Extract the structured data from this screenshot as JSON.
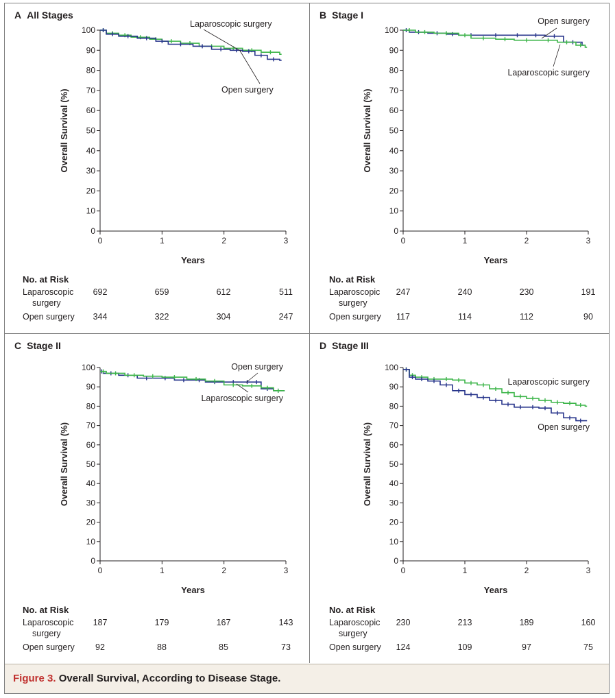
{
  "figure": {
    "label": "Figure 3.",
    "caption": "Overall Survival, According to Disease Stage."
  },
  "colors": {
    "laparoscopic": "#3db54a",
    "open": "#27348b",
    "axis": "#231f20",
    "caption_label": "#c0312f",
    "caption_bg": "#f4efe7"
  },
  "risk": {
    "title": "No. at Risk",
    "row1_label_line1": "Laparoscopic",
    "row1_label_line2": "surgery",
    "row2_label": "Open surgery"
  },
  "chart_data": [
    {
      "type": "line",
      "panel_letter": "A",
      "title": "All Stages",
      "xlabel": "Years",
      "ylabel": "Overall Survival (%)",
      "xlim": [
        0,
        3
      ],
      "ylim": [
        0,
        100
      ],
      "x_ticks": [
        0,
        1,
        2,
        3
      ],
      "y_ticks": [
        0,
        10,
        20,
        30,
        40,
        50,
        60,
        70,
        80,
        90,
        100
      ],
      "grid": false,
      "series": [
        {
          "name": "Laparoscopic surgery",
          "color": "#3db54a",
          "x": [
            0,
            0.1,
            0.3,
            0.5,
            0.8,
            1.0,
            1.3,
            1.6,
            2.0,
            2.3,
            2.6,
            2.9
          ],
          "y": [
            100,
            98.5,
            97.5,
            96.5,
            95.5,
            94.5,
            93.5,
            92,
            91,
            90,
            89,
            88
          ]
        },
        {
          "name": "Open surgery",
          "color": "#27348b",
          "x": [
            0,
            0.1,
            0.3,
            0.6,
            0.9,
            1.1,
            1.5,
            1.8,
            2.1,
            2.3,
            2.5,
            2.7,
            2.9
          ],
          "y": [
            100,
            98,
            97,
            96,
            94.5,
            93,
            92,
            90.5,
            90,
            89.5,
            87.5,
            85.5,
            85
          ]
        }
      ],
      "annotations": [
        {
          "text": "Laparoscopic surgery",
          "series": "Laparoscopic surgery"
        },
        {
          "text": "Open surgery",
          "series": "Open surgery"
        }
      ],
      "risk": {
        "times": [
          0,
          1,
          2,
          3
        ],
        "laparoscopic": [
          692,
          659,
          612,
          511
        ],
        "open": [
          344,
          322,
          304,
          247
        ]
      }
    },
    {
      "type": "line",
      "panel_letter": "B",
      "title": "Stage I",
      "xlabel": "Years",
      "ylabel": "Overall Survival (%)",
      "xlim": [
        0,
        3
      ],
      "ylim": [
        0,
        100
      ],
      "x_ticks": [
        0,
        1,
        2,
        3
      ],
      "y_ticks": [
        0,
        10,
        20,
        30,
        40,
        50,
        60,
        70,
        80,
        90,
        100
      ],
      "grid": false,
      "series": [
        {
          "name": "Open surgery",
          "color": "#27348b",
          "x": [
            0,
            0.1,
            0.4,
            0.7,
            0.9,
            1.3,
            1.7,
            2.0,
            2.3,
            2.6,
            2.9
          ],
          "y": [
            100,
            99,
            98.5,
            98,
            97.5,
            97.5,
            97.5,
            97.5,
            97,
            94,
            92.5
          ]
        },
        {
          "name": "Laparoscopic surgery",
          "color": "#3db54a",
          "x": [
            0,
            0.2,
            0.5,
            0.9,
            1.1,
            1.5,
            1.8,
            2.2,
            2.5,
            2.8,
            2.95
          ],
          "y": [
            100,
            99,
            98.5,
            97.5,
            96,
            95.5,
            95,
            95,
            94,
            92.5,
            91.5
          ]
        }
      ],
      "annotations": [
        {
          "text": "Open surgery",
          "series": "Open surgery"
        },
        {
          "text": "Laparoscopic surgery",
          "series": "Laparoscopic surgery"
        }
      ],
      "risk": {
        "times": [
          0,
          1,
          2,
          3
        ],
        "laparoscopic": [
          247,
          240,
          230,
          191
        ],
        "open": [
          117,
          114,
          112,
          90
        ]
      }
    },
    {
      "type": "line",
      "panel_letter": "C",
      "title": "Stage II",
      "xlabel": "Years",
      "ylabel": "Overall Survival (%)",
      "xlim": [
        0,
        3
      ],
      "ylim": [
        0,
        100
      ],
      "x_ticks": [
        0,
        1,
        2,
        3
      ],
      "y_ticks": [
        0,
        10,
        20,
        30,
        40,
        50,
        60,
        70,
        80,
        90,
        100
      ],
      "grid": false,
      "series": [
        {
          "name": "Open surgery",
          "color": "#27348b",
          "x": [
            0,
            0.05,
            0.3,
            0.6,
            0.9,
            1.2,
            1.5,
            1.7,
            2.0,
            2.3,
            2.45,
            2.6,
            2.8,
            2.95
          ],
          "y": [
            98,
            97,
            96,
            94.5,
            94.5,
            93.5,
            93.5,
            92.5,
            92.5,
            92.5,
            92.5,
            89,
            88,
            88
          ]
        },
        {
          "name": "Laparoscopic surgery",
          "color": "#3db54a",
          "x": [
            0,
            0.1,
            0.4,
            0.7,
            1.0,
            1.4,
            1.7,
            2.0,
            2.3,
            2.6,
            2.8,
            2.95
          ],
          "y": [
            98,
            97,
            96,
            95.5,
            95,
            94,
            93,
            91,
            90.5,
            89.5,
            88,
            88
          ]
        }
      ],
      "annotations": [
        {
          "text": "Open surgery",
          "series": "Open surgery"
        },
        {
          "text": "Laparoscopic surgery",
          "series": "Laparoscopic surgery"
        }
      ],
      "risk": {
        "times": [
          0,
          1,
          2,
          3
        ],
        "laparoscopic": [
          187,
          179,
          167,
          143
        ],
        "open": [
          92,
          88,
          85,
          73
        ]
      }
    },
    {
      "type": "line",
      "panel_letter": "D",
      "title": "Stage III",
      "xlabel": "Years",
      "ylabel": "Overall Survival (%)",
      "xlim": [
        0,
        3
      ],
      "ylim": [
        0,
        100
      ],
      "x_ticks": [
        0,
        1,
        2,
        3
      ],
      "y_ticks": [
        0,
        10,
        20,
        30,
        40,
        50,
        60,
        70,
        80,
        90,
        100
      ],
      "grid": false,
      "series": [
        {
          "name": "Laparoscopic surgery",
          "color": "#3db54a",
          "x": [
            0,
            0.1,
            0.2,
            0.4,
            0.6,
            0.8,
            1.0,
            1.2,
            1.4,
            1.6,
            1.8,
            2.0,
            2.2,
            2.4,
            2.6,
            2.8,
            2.95
          ],
          "y": [
            99,
            96,
            95,
            94,
            94,
            93.5,
            92,
            91,
            89,
            87,
            85,
            84,
            83,
            82,
            81.5,
            80.5,
            80
          ]
        },
        {
          "name": "Open surgery",
          "color": "#27348b",
          "x": [
            0,
            0.1,
            0.2,
            0.4,
            0.6,
            0.8,
            1.0,
            1.2,
            1.4,
            1.6,
            1.8,
            2.0,
            2.2,
            2.4,
            2.6,
            2.8,
            2.95
          ],
          "y": [
            99,
            95,
            94,
            93,
            91,
            88,
            86,
            84.5,
            83,
            81,
            79.5,
            79.5,
            79,
            76.5,
            74,
            72.5,
            72.5
          ]
        }
      ],
      "annotations": [
        {
          "text": "Laparoscopic surgery",
          "series": "Laparoscopic surgery"
        },
        {
          "text": "Open surgery",
          "series": "Open surgery"
        }
      ],
      "risk": {
        "times": [
          0,
          1,
          2,
          3
        ],
        "laparoscopic": [
          230,
          213,
          189,
          160
        ],
        "open": [
          124,
          109,
          97,
          75
        ]
      }
    }
  ]
}
